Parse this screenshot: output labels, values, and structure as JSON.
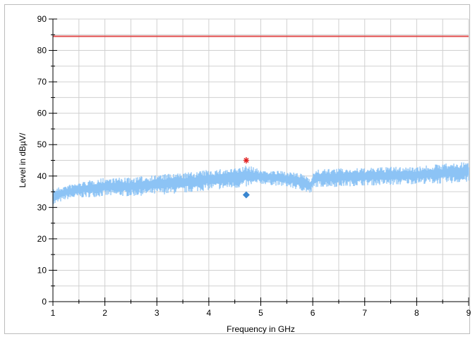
{
  "chart_data": {
    "type": "line",
    "xlabel": "Frequency in GHz",
    "ylabel": "Level in dBµV/",
    "xlim": [
      1,
      9
    ],
    "ylim": [
      0,
      90
    ],
    "x_ticks": [
      "1",
      "2",
      "3",
      "4",
      "5",
      "6",
      "7",
      "8",
      "9"
    ],
    "y_ticks": [
      "0",
      "10",
      "20",
      "30",
      "40",
      "50",
      "60",
      "70",
      "80",
      "90"
    ],
    "grid": true,
    "series": [
      {
        "kind": "limit-line",
        "color": "#e04b4b",
        "x": [
          1,
          9
        ],
        "y": [
          84.5,
          84.5
        ]
      },
      {
        "kind": "measurement-band",
        "color": "#8cc3f5",
        "x": [
          1.0,
          1.25,
          1.5,
          2.0,
          2.5,
          3.0,
          3.5,
          4.0,
          4.5,
          4.75,
          5.0,
          5.5,
          5.85,
          5.95,
          6.05,
          6.5,
          7.0,
          7.5,
          8.0,
          8.5,
          9.0
        ],
        "y_min": [
          30.5,
          32.5,
          33.0,
          33.5,
          33.5,
          34.0,
          34.5,
          35.5,
          36.0,
          36.5,
          37.5,
          36.5,
          35.0,
          34.0,
          36.5,
          36.5,
          37.0,
          37.0,
          37.5,
          37.5,
          38.0
        ],
        "y_max": [
          36.0,
          37.0,
          38.0,
          39.5,
          39.5,
          40.5,
          41.0,
          42.0,
          42.5,
          43.5,
          42.0,
          41.5,
          40.5,
          39.5,
          42.0,
          42.5,
          42.5,
          43.0,
          43.0,
          44.0,
          44.5
        ]
      }
    ],
    "markers": [
      {
        "shape": "asterisk",
        "color": "#e02020",
        "x": 4.72,
        "y": 45.0
      },
      {
        "shape": "diamond",
        "color": "#3a86d0",
        "x": 4.72,
        "y": 34.0
      }
    ]
  }
}
